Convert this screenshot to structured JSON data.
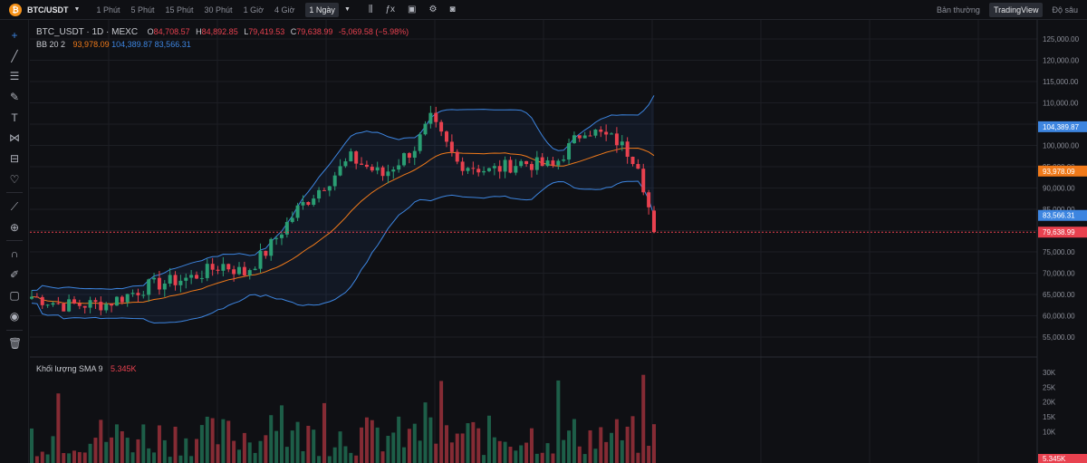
{
  "topbar": {
    "coin_glyph": "₿",
    "symbol": "BTC/USDT",
    "timeframes": [
      "1 Phút",
      "5 Phút",
      "15 Phút",
      "30 Phút",
      "1 Giờ",
      "4 Giờ",
      "1 Ngày"
    ],
    "active_timeframe_index": 6,
    "view_modes": [
      "Bản thường",
      "TradingView",
      "Độ sâu"
    ],
    "active_view_index": 1
  },
  "legend": {
    "title": "BTC_USDT · 1D · MEXC",
    "o_label": "O",
    "o_value": "84,708.57",
    "h_label": "H",
    "h_value": "84,892.85",
    "l_label": "L",
    "l_value": "79,419.53",
    "c_label": "C",
    "c_value": "79,638.99",
    "change": "-5,069.58 (−5.98%)",
    "bb_label": "BB 20 2",
    "bb_basis": "93,978.09",
    "bb_upper": "104,389.87",
    "bb_lower": "83,566.31"
  },
  "volume_legend": {
    "label": "Khối lượng SMA 9",
    "value": "5.345K"
  },
  "price_axis": {
    "ticks": [
      "125,000.00",
      "120,000.00",
      "115,000.00",
      "110,000.00",
      "105,000.00",
      "100,000.00",
      "95,000.00",
      "90,000.00",
      "85,000.00",
      "80,000.00",
      "75,000.00",
      "70,000.00",
      "65,000.00",
      "60,000.00",
      "55,000.00"
    ],
    "labels": [
      {
        "text": "104,389.87",
        "price": 104389.87,
        "color": "#3d85e0"
      },
      {
        "text": "93,978.09",
        "price": 93978.09,
        "color": "#f07a1a"
      },
      {
        "text": "83,566.31",
        "price": 83566.31,
        "color": "#3d85e0"
      },
      {
        "text": "79,638.99",
        "price": 79638.99,
        "color": "#e8414f"
      }
    ]
  },
  "volume_axis": {
    "ticks": [
      "30K",
      "25K",
      "20K",
      "15K",
      "10K"
    ],
    "label": {
      "text": "5.345K",
      "color": "#e8414f"
    }
  },
  "colors": {
    "up": "#2a9e73",
    "down": "#e8414f",
    "bb_basis": "#f07a1a",
    "bb_band": "#3d85e0",
    "background": "#0f1014"
  }
}
